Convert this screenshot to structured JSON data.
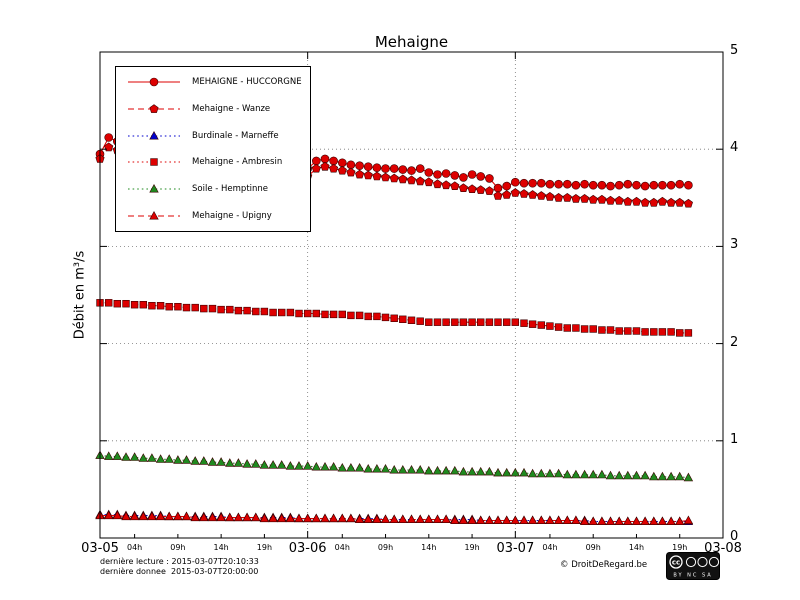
{
  "title": "Mehaigne",
  "y_axis_title": "Débit en m³/s",
  "footer": {
    "last_read": "dernière lecture : 2015-03-07T20:10:33",
    "last_data": "dernière donnee  2015-03-07T20:00:00",
    "credit": "© DroitDeRegard.be",
    "license_badge": {
      "cc": "cc",
      "terms": "BY NC SA"
    }
  },
  "chart_data": {
    "type": "line",
    "title": "Mehaigne",
    "ylabel": "Débit en m³/s",
    "x_unit": "hours since 2015-03-05 00:00",
    "xlim": [
      0,
      72
    ],
    "ylim": [
      0,
      5
    ],
    "grid": "dotted at major ticks",
    "legend_position": "upper-left",
    "y_ticks": [
      0,
      1,
      2,
      3,
      4,
      5
    ],
    "x_major_ticks": [
      {
        "pos": 0,
        "label": "03-05"
      },
      {
        "pos": 24,
        "label": "03-06"
      },
      {
        "pos": 48,
        "label": "03-07"
      },
      {
        "pos": 72,
        "label": "03-08"
      }
    ],
    "x_minor_ticks": [
      {
        "pos": 4,
        "label": "04h"
      },
      {
        "pos": 9,
        "label": "09h"
      },
      {
        "pos": 14,
        "label": "14h"
      },
      {
        "pos": 19,
        "label": "19h"
      },
      {
        "pos": 28,
        "label": "04h"
      },
      {
        "pos": 33,
        "label": "09h"
      },
      {
        "pos": 38,
        "label": "14h"
      },
      {
        "pos": 43,
        "label": "19h"
      },
      {
        "pos": 52,
        "label": "04h"
      },
      {
        "pos": 57,
        "label": "09h"
      },
      {
        "pos": 62,
        "label": "14h"
      },
      {
        "pos": 67,
        "label": "19h"
      }
    ],
    "x": [
      0,
      1,
      2,
      3,
      4,
      5,
      6,
      7,
      8,
      9,
      10,
      11,
      12,
      13,
      14,
      15,
      16,
      17,
      18,
      19,
      20,
      21,
      22,
      23,
      24,
      25,
      26,
      27,
      28,
      29,
      30,
      31,
      32,
      33,
      34,
      35,
      36,
      37,
      38,
      39,
      40,
      41,
      42,
      43,
      44,
      45,
      46,
      47,
      48,
      49,
      50,
      51,
      52,
      53,
      54,
      55,
      56,
      57,
      58,
      59,
      60,
      61,
      62,
      63,
      64,
      65,
      66,
      67,
      68
    ],
    "series": [
      {
        "name": "MEHAIGNE - HUCCORGNE",
        "color": "#dd0000",
        "marker": "circle",
        "line": "solid",
        "values": [
          3.95,
          4.12,
          4.08,
          4.03,
          4.0,
          3.97,
          3.95,
          3.93,
          3.91,
          3.89,
          3.88,
          3.87,
          3.86,
          3.85,
          3.84,
          3.83,
          3.82,
          3.81,
          3.8,
          3.79,
          3.79,
          3.78,
          3.77,
          3.77,
          3.8,
          3.88,
          3.9,
          3.88,
          3.86,
          3.84,
          3.83,
          3.82,
          3.81,
          3.8,
          3.8,
          3.79,
          3.78,
          3.8,
          3.76,
          3.74,
          3.75,
          3.73,
          3.71,
          3.74,
          3.72,
          3.7,
          3.6,
          3.62,
          3.66,
          3.65,
          3.65,
          3.65,
          3.64,
          3.64,
          3.64,
          3.63,
          3.64,
          3.63,
          3.63,
          3.62,
          3.63,
          3.64,
          3.63,
          3.62,
          3.63,
          3.63,
          3.63,
          3.64,
          3.63
        ]
      },
      {
        "name": "Mehaigne - Wanze",
        "color": "#dd0000",
        "marker": "pentagon",
        "line": "dashed",
        "values": [
          3.9,
          4.02,
          3.99,
          3.95,
          3.92,
          3.9,
          3.88,
          3.86,
          3.84,
          3.82,
          3.81,
          3.8,
          3.79,
          3.78,
          3.77,
          3.76,
          3.75,
          3.74,
          3.73,
          3.72,
          3.72,
          3.71,
          3.7,
          3.7,
          3.72,
          3.8,
          3.82,
          3.8,
          3.78,
          3.76,
          3.74,
          3.73,
          3.72,
          3.71,
          3.7,
          3.69,
          3.68,
          3.67,
          3.66,
          3.64,
          3.63,
          3.62,
          3.6,
          3.59,
          3.58,
          3.57,
          3.52,
          3.53,
          3.55,
          3.54,
          3.53,
          3.52,
          3.51,
          3.5,
          3.5,
          3.49,
          3.49,
          3.48,
          3.48,
          3.47,
          3.47,
          3.46,
          3.46,
          3.45,
          3.45,
          3.46,
          3.45,
          3.45,
          3.44
        ]
      },
      {
        "name": "Burdinale - Marneffe",
        "color": "#0000cc",
        "marker": "triangle",
        "line": "dotted",
        "values": [
          0.24,
          0.24,
          0.24,
          0.23,
          0.23,
          0.23,
          0.23,
          0.23,
          0.22,
          0.22,
          0.22,
          0.22,
          0.22,
          0.22,
          0.22,
          0.21,
          0.21,
          0.21,
          0.21,
          0.21,
          0.21,
          0.21,
          0.21,
          0.2,
          0.2,
          0.2,
          0.2,
          0.2,
          0.2,
          0.2,
          0.2,
          0.2,
          0.2,
          0.19,
          0.19,
          0.19,
          0.19,
          0.19,
          0.19,
          0.19,
          0.19,
          0.19,
          0.19,
          0.19,
          0.18,
          0.18,
          0.18,
          0.18,
          0.18,
          0.18,
          0.18,
          0.18,
          0.18,
          0.18,
          0.18,
          0.18,
          0.18,
          0.17,
          0.17,
          0.17,
          0.17,
          0.17,
          0.17,
          0.17,
          0.17,
          0.17,
          0.17,
          0.17,
          0.17
        ]
      },
      {
        "name": "Mehaigne - Ambresin",
        "color": "#dd0000",
        "marker": "square",
        "line": "dotted",
        "values": [
          2.42,
          2.42,
          2.41,
          2.41,
          2.4,
          2.4,
          2.39,
          2.39,
          2.38,
          2.38,
          2.37,
          2.37,
          2.36,
          2.36,
          2.35,
          2.35,
          2.34,
          2.34,
          2.33,
          2.33,
          2.32,
          2.32,
          2.32,
          2.31,
          2.31,
          2.31,
          2.3,
          2.3,
          2.3,
          2.29,
          2.29,
          2.28,
          2.28,
          2.27,
          2.26,
          2.25,
          2.24,
          2.23,
          2.22,
          2.22,
          2.22,
          2.22,
          2.22,
          2.22,
          2.22,
          2.22,
          2.22,
          2.22,
          2.22,
          2.21,
          2.2,
          2.19,
          2.18,
          2.17,
          2.16,
          2.16,
          2.15,
          2.15,
          2.14,
          2.14,
          2.13,
          2.13,
          2.13,
          2.12,
          2.12,
          2.12,
          2.12,
          2.11,
          2.11
        ]
      },
      {
        "name": "Soile - Hemptinne",
        "color": "#1f8a1f",
        "marker": "triangle",
        "line": "dotted",
        "values": [
          0.85,
          0.84,
          0.84,
          0.83,
          0.83,
          0.82,
          0.82,
          0.81,
          0.81,
          0.8,
          0.8,
          0.79,
          0.79,
          0.78,
          0.78,
          0.77,
          0.77,
          0.76,
          0.76,
          0.75,
          0.75,
          0.75,
          0.74,
          0.74,
          0.74,
          0.73,
          0.73,
          0.73,
          0.72,
          0.72,
          0.72,
          0.71,
          0.71,
          0.71,
          0.7,
          0.7,
          0.7,
          0.7,
          0.69,
          0.69,
          0.69,
          0.69,
          0.68,
          0.68,
          0.68,
          0.68,
          0.67,
          0.67,
          0.67,
          0.67,
          0.66,
          0.66,
          0.66,
          0.66,
          0.65,
          0.65,
          0.65,
          0.65,
          0.65,
          0.64,
          0.64,
          0.64,
          0.64,
          0.64,
          0.63,
          0.63,
          0.63,
          0.63,
          0.62
        ]
      },
      {
        "name": "Mehaigne - Upigny",
        "color": "#dd0000",
        "marker": "triangle",
        "line": "dashed",
        "values": [
          0.23,
          0.23,
          0.23,
          0.22,
          0.22,
          0.22,
          0.22,
          0.22,
          0.22,
          0.22,
          0.22,
          0.21,
          0.21,
          0.21,
          0.21,
          0.21,
          0.21,
          0.21,
          0.21,
          0.2,
          0.2,
          0.2,
          0.2,
          0.2,
          0.2,
          0.2,
          0.2,
          0.2,
          0.2,
          0.2,
          0.19,
          0.19,
          0.19,
          0.19,
          0.19,
          0.19,
          0.19,
          0.19,
          0.19,
          0.19,
          0.19,
          0.18,
          0.18,
          0.18,
          0.18,
          0.18,
          0.18,
          0.18,
          0.18,
          0.18,
          0.18,
          0.18,
          0.18,
          0.18,
          0.18,
          0.18,
          0.17,
          0.17,
          0.17,
          0.17,
          0.17,
          0.17,
          0.17,
          0.17,
          0.17,
          0.17,
          0.17,
          0.17,
          0.18
        ]
      }
    ]
  }
}
